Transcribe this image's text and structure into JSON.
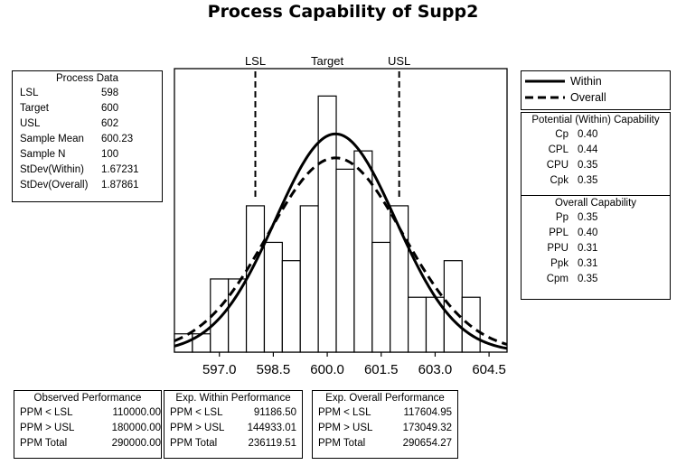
{
  "title": "Process Capability of Supp2",
  "process_data": {
    "header": "Process Data",
    "rows": [
      {
        "label": "LSL",
        "value": "598"
      },
      {
        "label": "Target",
        "value": "600"
      },
      {
        "label": "USL",
        "value": "602"
      },
      {
        "label": "Sample Mean",
        "value": "600.23"
      },
      {
        "label": "Sample N",
        "value": "100"
      },
      {
        "label": "StDev(Within)",
        "value": "1.67231"
      },
      {
        "label": "StDev(Overall)",
        "value": "1.87861"
      }
    ]
  },
  "legend": {
    "within": "Within",
    "overall": "Overall"
  },
  "potential_capability": {
    "header": "Potential (Within) Capability",
    "rows": [
      {
        "label": "Cp",
        "value": "0.40"
      },
      {
        "label": "CPL",
        "value": "0.44"
      },
      {
        "label": "CPU",
        "value": "0.35"
      },
      {
        "label": "Cpk",
        "value": "0.35"
      }
    ]
  },
  "overall_capability": {
    "header": "Overall Capability",
    "rows": [
      {
        "label": "Pp",
        "value": "0.35"
      },
      {
        "label": "PPL",
        "value": "0.40"
      },
      {
        "label": "PPU",
        "value": "0.31"
      },
      {
        "label": "Ppk",
        "value": "0.31"
      },
      {
        "label": "Cpm",
        "value": "0.35"
      }
    ]
  },
  "observed_performance": {
    "header": "Observed Performance",
    "rows": [
      {
        "label": "PPM < LSL",
        "value": "110000.00"
      },
      {
        "label": "PPM > USL",
        "value": "180000.00"
      },
      {
        "label": "PPM Total",
        "value": "290000.00"
      }
    ]
  },
  "exp_within_performance": {
    "header": "Exp. Within Performance",
    "rows": [
      {
        "label": "PPM < LSL",
        "value": "91186.50"
      },
      {
        "label": "PPM > USL",
        "value": "144933.01"
      },
      {
        "label": "PPM Total",
        "value": "236119.51"
      }
    ]
  },
  "exp_overall_performance": {
    "header": "Exp. Overall Performance",
    "rows": [
      {
        "label": "PPM < LSL",
        "value": "117604.95"
      },
      {
        "label": "PPM > USL",
        "value": "173049.32"
      },
      {
        "label": "PPM Total",
        "value": "290654.27"
      }
    ]
  },
  "chart_data": {
    "type": "bar",
    "title": "Process Capability of Supp2",
    "xlim": [
      595.75,
      605.0
    ],
    "ylim": [
      0,
      0.306
    ],
    "x_ticks": [
      597.0,
      598.5,
      600.0,
      601.5,
      603.0,
      604.5
    ],
    "x_tick_labels": [
      "597.0",
      "598.5",
      "600.0",
      "601.5",
      "603.0",
      "604.5"
    ],
    "bins": [
      {
        "x0": 595.75,
        "x1": 596.25,
        "density": 0.02
      },
      {
        "x0": 596.25,
        "x1": 596.75,
        "density": 0.02
      },
      {
        "x0": 596.75,
        "x1": 597.25,
        "density": 0.08
      },
      {
        "x0": 597.25,
        "x1": 597.75,
        "density": 0.08
      },
      {
        "x0": 597.75,
        "x1": 598.25,
        "density": 0.16
      },
      {
        "x0": 598.25,
        "x1": 598.75,
        "density": 0.12
      },
      {
        "x0": 598.75,
        "x1": 599.25,
        "density": 0.1
      },
      {
        "x0": 599.25,
        "x1": 599.75,
        "density": 0.16
      },
      {
        "x0": 599.75,
        "x1": 600.25,
        "density": 0.28
      },
      {
        "x0": 600.25,
        "x1": 600.75,
        "density": 0.2
      },
      {
        "x0": 600.75,
        "x1": 601.25,
        "density": 0.22
      },
      {
        "x0": 601.25,
        "x1": 601.75,
        "density": 0.12
      },
      {
        "x0": 601.75,
        "x1": 602.25,
        "density": 0.16
      },
      {
        "x0": 602.25,
        "x1": 602.75,
        "density": 0.06
      },
      {
        "x0": 602.75,
        "x1": 603.25,
        "density": 0.06
      },
      {
        "x0": 603.25,
        "x1": 603.75,
        "density": 0.1
      },
      {
        "x0": 603.75,
        "x1": 604.25,
        "density": 0.06
      }
    ],
    "series": [
      {
        "name": "Within",
        "mean": 600.23,
        "stdev": 1.67231,
        "style": "solid"
      },
      {
        "name": "Overall",
        "mean": 600.23,
        "stdev": 1.87861,
        "style": "dashed"
      }
    ],
    "reference_lines": [
      {
        "label": "LSL",
        "x": 598
      },
      {
        "label": "Target",
        "x": 600
      },
      {
        "label": "USL",
        "x": 602
      }
    ]
  }
}
